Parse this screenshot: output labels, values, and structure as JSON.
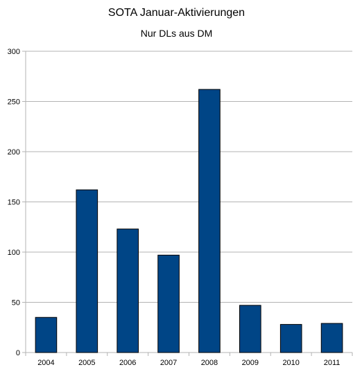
{
  "chart_data": {
    "type": "bar",
    "title": "SOTA Januar-Aktivierungen",
    "subtitle": "Nur DLs aus DM",
    "xlabel": "",
    "ylabel": "",
    "categories": [
      "2004",
      "2005",
      "2006",
      "2007",
      "2008",
      "2009",
      "2010",
      "2011"
    ],
    "series": [
      {
        "values": [
          35,
          162,
          123,
          97,
          262,
          47,
          28,
          29
        ]
      }
    ],
    "ylim": [
      0,
      300
    ],
    "yticks": [
      0,
      50,
      100,
      150,
      200,
      250,
      300
    ],
    "grid": true,
    "legend": "none",
    "colors": {
      "bar": "#004586",
      "bar_outline": "#000000",
      "grid": "#b3b3b3",
      "axis": "#b3b3b3"
    }
  }
}
